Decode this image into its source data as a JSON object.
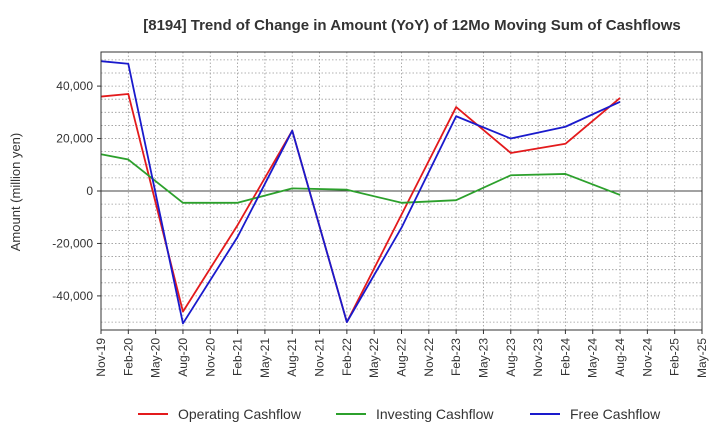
{
  "chart_data": {
    "type": "line",
    "title": "[8194]  Trend of Change in Amount (YoY) of 12Mo Moving Sum of Cashflows",
    "xlabel": "",
    "ylabel": "Amount (million yen)",
    "ylim": [
      -53000,
      53000
    ],
    "yticks": [
      40000,
      20000,
      0,
      -20000,
      -40000
    ],
    "ytick_labels": [
      "40,000",
      "20,000",
      "0",
      "-20,000",
      "-40,000"
    ],
    "categories": [
      "Nov-19",
      "Feb-20",
      "May-20",
      "Aug-20",
      "Nov-20",
      "Feb-21",
      "May-21",
      "Aug-21",
      "Nov-21",
      "Feb-22",
      "May-22",
      "Aug-22",
      "Nov-22",
      "Feb-23",
      "May-23",
      "Aug-23",
      "Nov-23",
      "Feb-24",
      "May-24",
      "Aug-24",
      "Nov-24",
      "Feb-25",
      "May-25"
    ],
    "grid": true,
    "legend_position": "bottom",
    "series": [
      {
        "name": "Operating Cashflow",
        "color": "#e31a1c",
        "values": [
          36000,
          37000,
          null,
          -46000,
          null,
          -13000,
          null,
          23000,
          null,
          -50000,
          null,
          null,
          null,
          32000,
          null,
          14500,
          null,
          18000,
          null,
          35500,
          null,
          null,
          null
        ]
      },
      {
        "name": "Investing Cashflow",
        "color": "#2ca02c",
        "values": [
          14000,
          12000,
          null,
          -4500,
          null,
          -4500,
          null,
          1000,
          null,
          500,
          null,
          -4500,
          null,
          -3500,
          null,
          6000,
          null,
          6500,
          null,
          -1500,
          null,
          null,
          null
        ]
      },
      {
        "name": "Free Cashflow",
        "color": "#1a1acc",
        "values": [
          49500,
          48500,
          null,
          -50500,
          null,
          -17500,
          null,
          23000,
          null,
          -50000,
          null,
          -14000,
          null,
          28500,
          null,
          20000,
          null,
          24500,
          null,
          34000,
          null,
          null,
          null
        ]
      }
    ]
  }
}
